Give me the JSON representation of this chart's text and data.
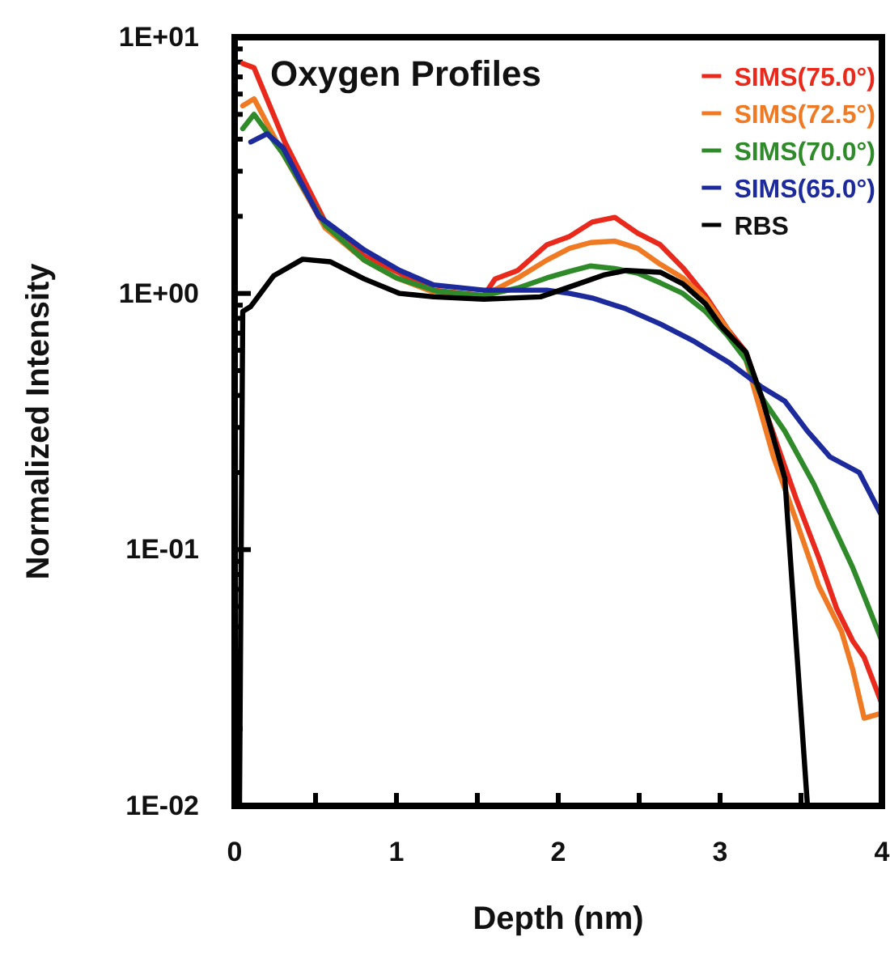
{
  "chart_data": {
    "type": "line",
    "title": "Oxygen Profiles",
    "xlabel": "Depth (nm)",
    "ylabel": "Normalized Intensity",
    "log": "y",
    "legend": "top right",
    "marker": "none",
    "line_style": "solid",
    "xlim": [
      0,
      4
    ],
    "xticks": [
      0,
      {
        "value": 0.5,
        "label": null
      },
      1,
      {
        "value": 1.5,
        "label": null
      },
      2,
      {
        "value": 2.5,
        "label": null
      },
      3,
      {
        "value": 3.5,
        "label": null
      },
      4
    ],
    "ylim": [
      0.01,
      10
    ],
    "yticks": [
      {
        "value": 0.01,
        "label": "1E-02"
      },
      {
        "value": 0.02,
        "label": null
      },
      {
        "value": 0.03,
        "label": null
      },
      {
        "value": 0.04,
        "label": null
      },
      {
        "value": 0.05,
        "label": null
      },
      {
        "value": 0.06,
        "label": null
      },
      {
        "value": 0.07,
        "label": null
      },
      {
        "value": 0.08,
        "label": null
      },
      {
        "value": 0.09,
        "label": null
      },
      {
        "value": 0.1,
        "label": "1E-01"
      },
      {
        "value": 0.2,
        "label": null
      },
      {
        "value": 0.3,
        "label": null
      },
      {
        "value": 0.4,
        "label": null
      },
      {
        "value": 0.5,
        "label": null
      },
      {
        "value": 0.6,
        "label": null
      },
      {
        "value": 0.7,
        "label": null
      },
      {
        "value": 0.8,
        "label": null
      },
      {
        "value": 0.9,
        "label": null
      },
      {
        "value": 1,
        "label": "1E+00"
      },
      {
        "value": 2,
        "label": null
      },
      {
        "value": 3,
        "label": null
      },
      {
        "value": 4,
        "label": null
      },
      {
        "value": 5,
        "label": null
      },
      {
        "value": 6,
        "label": null
      },
      {
        "value": 7,
        "label": null
      },
      {
        "value": 8,
        "label": null
      },
      {
        "value": 9,
        "label": null
      },
      {
        "value": 10,
        "label": "1E+01"
      }
    ],
    "series": [
      {
        "name": "SIMS(75.0°)",
        "color": "#e8291c",
        "x": [
          0.05,
          0.12,
          0.31,
          0.56,
          0.8,
          1.02,
          1.23,
          1.54,
          1.61,
          1.75,
          1.93,
          2.07,
          2.21,
          2.35,
          2.49,
          2.63,
          2.77,
          2.91,
          3.05,
          3.16,
          3.3,
          3.47,
          3.61,
          3.72,
          3.82,
          3.89,
          4.0
        ],
        "values": [
          7.9,
          7.6,
          3.9,
          1.9,
          1.4,
          1.2,
          1.03,
          0.98,
          1.14,
          1.23,
          1.55,
          1.67,
          1.9,
          1.98,
          1.72,
          1.55,
          1.26,
          0.98,
          0.72,
          0.59,
          0.32,
          0.158,
          0.093,
          0.059,
          0.044,
          0.038,
          0.025
        ]
      },
      {
        "name": "SIMS(72.5°)",
        "color": "#f07a23",
        "x": [
          0.05,
          0.12,
          0.3,
          0.56,
          0.8,
          1.0,
          1.25,
          1.54,
          1.75,
          1.93,
          2.07,
          2.2,
          2.35,
          2.49,
          2.63,
          2.77,
          2.91,
          3.05,
          3.16,
          3.33,
          3.47,
          3.61,
          3.75,
          3.82,
          3.89,
          4.0
        ],
        "values": [
          5.4,
          5.75,
          3.5,
          1.8,
          1.35,
          1.15,
          1.0,
          0.98,
          1.15,
          1.35,
          1.5,
          1.58,
          1.6,
          1.5,
          1.3,
          1.15,
          0.95,
          0.72,
          0.55,
          0.23,
          0.13,
          0.072,
          0.048,
          0.034,
          0.022,
          0.023
        ]
      },
      {
        "name": "SIMS(70.0°)",
        "color": "#2f8a2a",
        "x": [
          0.05,
          0.12,
          0.3,
          0.56,
          0.8,
          1.0,
          1.25,
          1.54,
          1.75,
          1.93,
          2.07,
          2.2,
          2.35,
          2.49,
          2.63,
          2.77,
          2.91,
          3.05,
          3.16,
          3.26,
          3.4,
          3.58,
          3.82,
          3.89,
          4.0
        ],
        "values": [
          4.4,
          5.0,
          3.5,
          1.85,
          1.35,
          1.15,
          1.02,
          0.98,
          1.05,
          1.15,
          1.22,
          1.28,
          1.25,
          1.2,
          1.1,
          1.0,
          0.85,
          0.68,
          0.55,
          0.39,
          0.29,
          0.18,
          0.085,
          0.066,
          0.044
        ]
      },
      {
        "name": "SIMS(65.0°)",
        "color": "#1c2a9c",
        "x": [
          0.1,
          0.2,
          0.3,
          0.52,
          0.8,
          1.02,
          1.23,
          1.54,
          1.93,
          2.07,
          2.21,
          2.42,
          2.63,
          2.84,
          3.05,
          3.26,
          3.4,
          3.54,
          3.68,
          3.86,
          4.0
        ],
        "values": [
          3.9,
          4.2,
          3.7,
          2.0,
          1.48,
          1.23,
          1.08,
          1.03,
          1.03,
          1.0,
          0.96,
          0.87,
          0.76,
          0.65,
          0.54,
          0.43,
          0.38,
          0.29,
          0.23,
          0.2,
          0.135
        ]
      },
      {
        "name": "RBS",
        "color": "#000000",
        "x": [
          0.03,
          0.05,
          0.1,
          0.24,
          0.42,
          0.59,
          0.8,
          1.02,
          1.23,
          1.54,
          1.89,
          2.07,
          2.28,
          2.42,
          2.63,
          2.77,
          2.91,
          3.01,
          3.16,
          3.26,
          3.4,
          3.54
        ],
        "values": [
          0.01,
          0.85,
          0.89,
          1.17,
          1.36,
          1.33,
          1.14,
          1.0,
          0.97,
          0.95,
          0.97,
          1.06,
          1.18,
          1.23,
          1.21,
          1.09,
          0.91,
          0.74,
          0.59,
          0.39,
          0.19,
          0.01
        ]
      }
    ]
  }
}
